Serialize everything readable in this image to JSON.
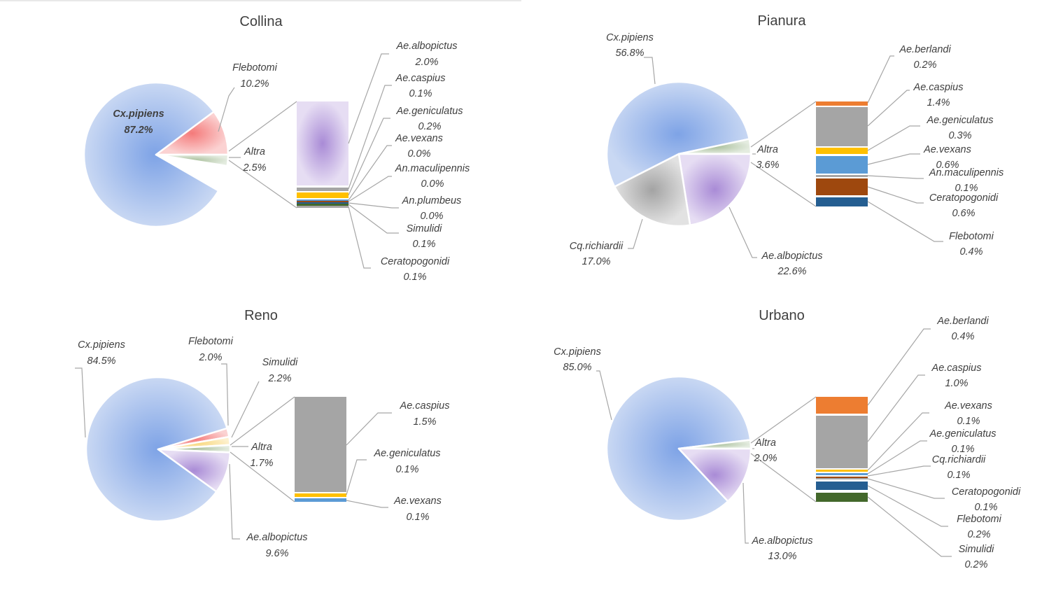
{
  "colors": {
    "Cx.pipiens": "#8eaee6",
    "Flebotomi_pink": "#f79b9b",
    "Altra": "#c8d6bf",
    "Ae.albopictus": "#b9a2dc",
    "Cq.richiardii": "#b8b8b8",
    "Simulidi_yellow": "#fbe5a8",
    "bar_orange": "#ed7d31",
    "bar_gray": "#a5a5a5",
    "bar_yellow": "#ffc000",
    "bar_blue": "#5b9bd5",
    "bar_brown": "#9e480e",
    "bar_navy": "#255e91",
    "bar_green": "#43682b"
  },
  "chart_data": [
    {
      "type": "pie",
      "title": "Collina",
      "slices": [
        {
          "name": "Cx.pipiens",
          "value": 87.2,
          "label": "87.2%",
          "color": "Cx.pipiens"
        },
        {
          "name": "Flebotomi",
          "value": 10.2,
          "label": "10.2%",
          "color": "Flebotomi_pink"
        },
        {
          "name": "Altra",
          "value": 2.5,
          "label": "2.5%",
          "color": "Altra"
        }
      ],
      "breakdown": [
        {
          "name": "Ae.albopictus",
          "value": 2.0,
          "label": "2.0%",
          "color": "Ae.albopictus"
        },
        {
          "name": "Ae.caspius",
          "value": 0.1,
          "label": "0.1%",
          "color": "bar_gray"
        },
        {
          "name": "Ae.geniculatus",
          "value": 0.2,
          "label": "0.2%",
          "color": "bar_yellow"
        },
        {
          "name": "Ae.vexans",
          "value": 0.0,
          "label": "0.0%",
          "color": "bar_blue"
        },
        {
          "name": "An.maculipennis",
          "value": 0.0,
          "label": "0.0%",
          "color": "bar_brown"
        },
        {
          "name": "An.plumbeus",
          "value": 0.0,
          "label": "0.0%",
          "color": "bar_navy"
        },
        {
          "name": "Simulidi",
          "value": 0.1,
          "label": "0.1%",
          "color": "bar_green"
        },
        {
          "name": "Ceratopogonidi",
          "value": 0.1,
          "label": "0.1%",
          "color": "bar_gray"
        }
      ]
    },
    {
      "type": "pie",
      "title": "Pianura",
      "slices": [
        {
          "name": "Cx.pipiens",
          "value": 56.8,
          "label": "56.8%",
          "color": "Cx.pipiens"
        },
        {
          "name": "Altra",
          "value": 3.6,
          "label": "3.6%",
          "color": "Altra"
        },
        {
          "name": "Ae.albopictus",
          "value": 22.6,
          "label": "22.6%",
          "color": "Ae.albopictus"
        },
        {
          "name": "Cq.richiardii",
          "value": 17.0,
          "label": "17.0%",
          "color": "Cq.richiardii"
        }
      ],
      "breakdown": [
        {
          "name": "Ae.berlandi",
          "value": 0.2,
          "label": "0.2%",
          "color": "bar_orange"
        },
        {
          "name": "Ae.caspius",
          "value": 1.4,
          "label": "1.4%",
          "color": "bar_gray"
        },
        {
          "name": "Ae.geniculatus",
          "value": 0.3,
          "label": "0.3%",
          "color": "bar_yellow"
        },
        {
          "name": "Ae.vexans",
          "value": 0.6,
          "label": "0.6%",
          "color": "bar_blue"
        },
        {
          "name": "An.maculipennis",
          "value": 0.1,
          "label": "0.1%",
          "color": "bar_gray"
        },
        {
          "name": "Ceratopogonidi",
          "value": 0.6,
          "label": "0.6%",
          "color": "bar_brown"
        },
        {
          "name": "Flebotomi",
          "value": 0.4,
          "label": "0.4%",
          "color": "bar_navy"
        }
      ]
    },
    {
      "type": "pie",
      "title": "Reno",
      "slices": [
        {
          "name": "Cx.pipiens",
          "value": 84.5,
          "label": "84.5%",
          "color": "Cx.pipiens"
        },
        {
          "name": "Flebotomi",
          "value": 2.0,
          "label": "2.0%",
          "color": "Flebotomi_pink"
        },
        {
          "name": "Simulidi",
          "value": 2.2,
          "label": "2.2%",
          "color": "Simulidi_yellow"
        },
        {
          "name": "Altra",
          "value": 1.7,
          "label": "1.7%",
          "color": "Altra"
        },
        {
          "name": "Ae.albopictus",
          "value": 9.6,
          "label": "9.6%",
          "color": "Ae.albopictus"
        }
      ],
      "breakdown": [
        {
          "name": "Ae.caspius",
          "value": 1.5,
          "label": "1.5%",
          "color": "bar_gray"
        },
        {
          "name": "Ae.geniculatus",
          "value": 0.1,
          "label": "0.1%",
          "color": "bar_yellow"
        },
        {
          "name": "Ae.vexans",
          "value": 0.1,
          "label": "0.1%",
          "color": "bar_blue"
        }
      ]
    },
    {
      "type": "pie",
      "title": "Urbano",
      "slices": [
        {
          "name": "Cx.pipiens",
          "value": 85.0,
          "label": "85.0%",
          "color": "Cx.pipiens"
        },
        {
          "name": "Altra",
          "value": 2.0,
          "label": "2.0%",
          "color": "Altra"
        },
        {
          "name": "Ae.albopictus",
          "value": 13.0,
          "label": "13.0%",
          "color": "Ae.albopictus"
        }
      ],
      "breakdown": [
        {
          "name": "Ae.berlandi",
          "value": 0.4,
          "label": "0.4%",
          "color": "bar_orange"
        },
        {
          "name": "Ae.caspius",
          "value": 1.0,
          "label": "1.0%",
          "color": "bar_gray"
        },
        {
          "name": "Ae.vexans",
          "value": 0.1,
          "label": "0.1%",
          "color": "bar_yellow"
        },
        {
          "name": "Ae.geniculatus",
          "value": 0.1,
          "label": "0.1%",
          "color": "bar_blue"
        },
        {
          "name": "Cq.richiardii",
          "value": 0.1,
          "label": "0.1%",
          "color": "bar_brown"
        },
        {
          "name": "Ceratopogonidi",
          "value": 0.1,
          "label": "0.1%",
          "color": "bar_gray"
        },
        {
          "name": "Flebotomi",
          "value": 0.2,
          "label": "0.2%",
          "color": "bar_navy"
        },
        {
          "name": "Simulidi",
          "value": 0.2,
          "label": "0.2%",
          "color": "bar_green"
        }
      ]
    }
  ]
}
